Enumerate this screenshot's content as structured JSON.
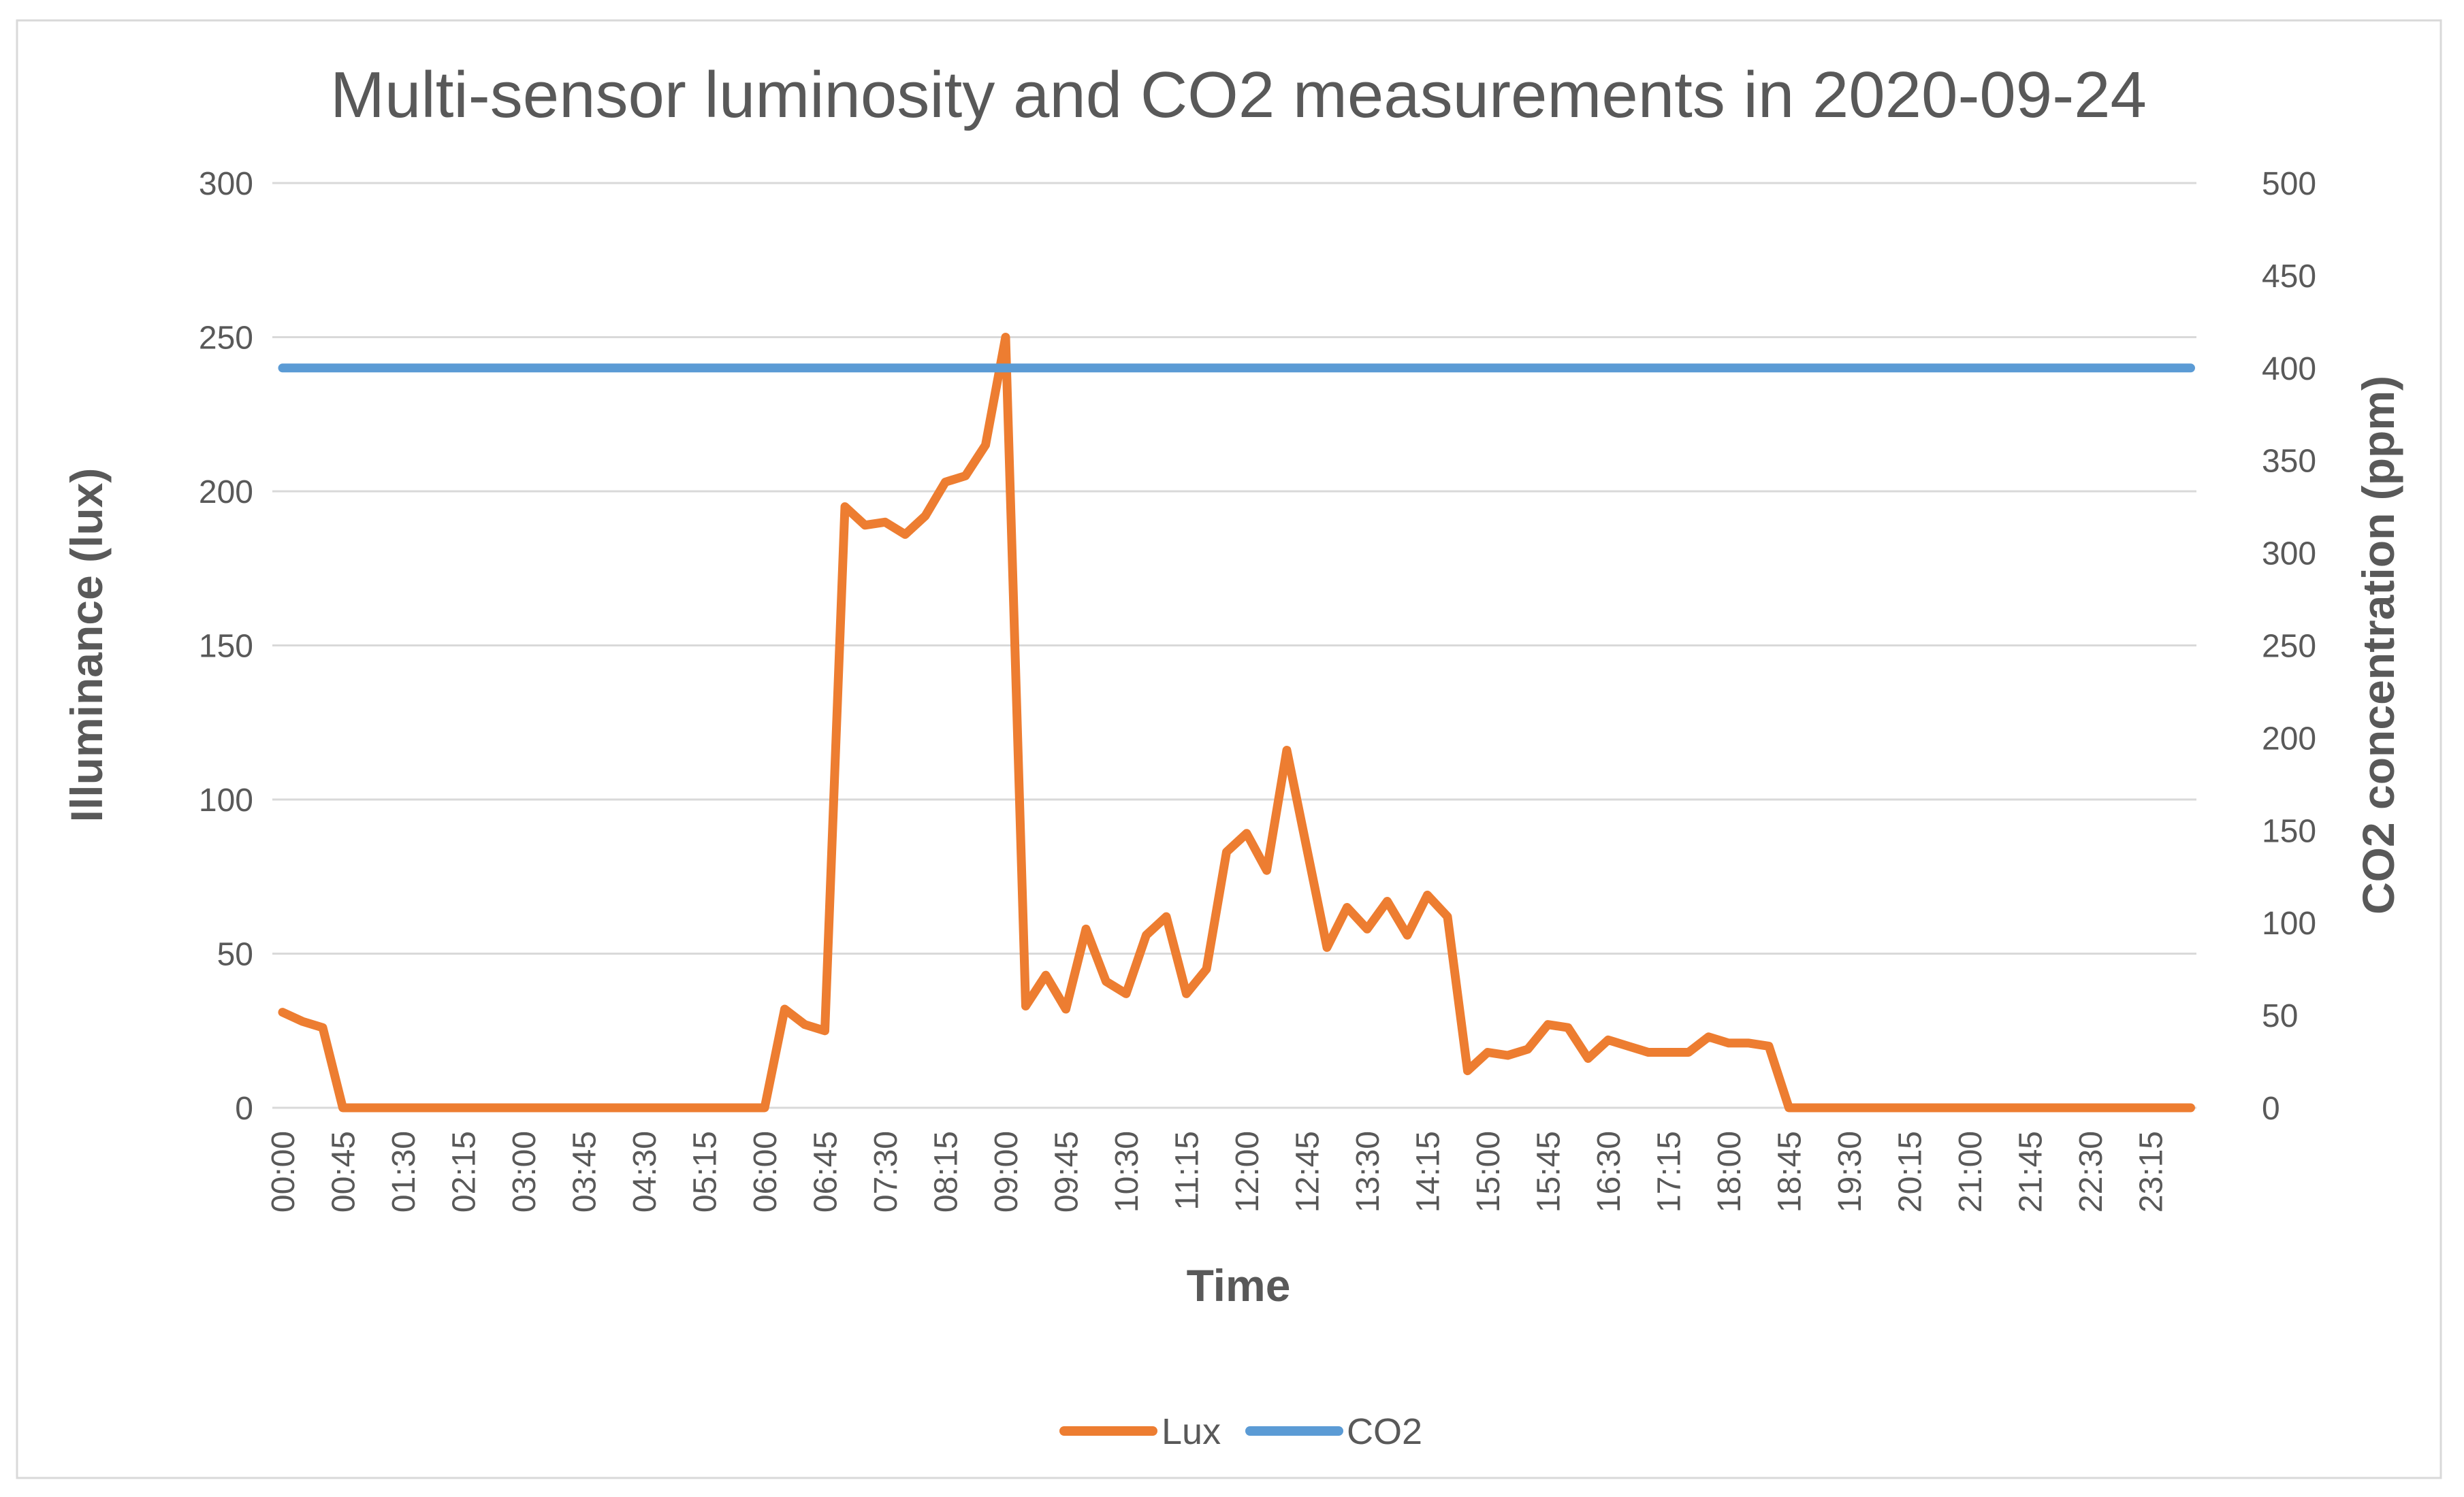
{
  "chart_data": {
    "type": "line",
    "title": "Multi-sensor luminosity and CO2 measurements in 2020-09-24",
    "xlabel": "Time",
    "ylabel_left": "Illuminance (lux)",
    "ylabel_right": "CO2 concentration (ppm)",
    "grid": true,
    "legend_position": "bottom",
    "left_axis": {
      "min": 0,
      "max": 300,
      "step": 50
    },
    "right_axis": {
      "min": 0,
      "max": 500,
      "step": 50
    },
    "x_tick_every": 3,
    "x_categories": [
      "00:00",
      "00:15",
      "00:30",
      "00:45",
      "01:00",
      "01:15",
      "01:30",
      "01:45",
      "02:00",
      "02:15",
      "02:30",
      "02:45",
      "03:00",
      "03:15",
      "03:30",
      "03:45",
      "04:00",
      "04:15",
      "04:30",
      "04:45",
      "05:00",
      "05:15",
      "05:30",
      "05:45",
      "06:00",
      "06:15",
      "06:30",
      "06:45",
      "07:00",
      "07:15",
      "07:30",
      "07:45",
      "08:00",
      "08:15",
      "08:30",
      "08:45",
      "09:00",
      "09:15",
      "09:30",
      "09:45",
      "10:00",
      "10:15",
      "10:30",
      "10:45",
      "11:00",
      "11:15",
      "11:30",
      "11:45",
      "12:00",
      "12:15",
      "12:30",
      "12:45",
      "13:00",
      "13:15",
      "13:30",
      "13:45",
      "14:00",
      "14:15",
      "14:30",
      "14:45",
      "15:00",
      "15:15",
      "15:30",
      "15:45",
      "16:00",
      "16:15",
      "16:30",
      "16:45",
      "17:00",
      "17:15",
      "17:30",
      "17:45",
      "18:00",
      "18:15",
      "18:30",
      "18:45",
      "19:00",
      "19:15",
      "19:30",
      "19:45",
      "20:00",
      "20:15",
      "20:30",
      "20:45",
      "21:00",
      "21:15",
      "21:30",
      "21:45",
      "22:00",
      "22:15",
      "22:30",
      "22:45",
      "23:00",
      "23:15",
      "23:30",
      "23:45"
    ],
    "series": [
      {
        "name": "Lux",
        "axis": "left",
        "color": "#ED7D31",
        "values": [
          31,
          28,
          26,
          0,
          0,
          0,
          0,
          0,
          0,
          0,
          0,
          0,
          0,
          0,
          0,
          0,
          0,
          0,
          0,
          0,
          0,
          0,
          0,
          0,
          0,
          32,
          27,
          25,
          195,
          189,
          190,
          186,
          192,
          203,
          205,
          215,
          250,
          33,
          43,
          32,
          58,
          41,
          37,
          56,
          62,
          37,
          45,
          83,
          89,
          77,
          116,
          84,
          52,
          65,
          58,
          67,
          56,
          69,
          62,
          12,
          18,
          17,
          19,
          27,
          26,
          16,
          22,
          20,
          18,
          18,
          18,
          23,
          21,
          21,
          20,
          0,
          0,
          0,
          0,
          0,
          0,
          0,
          0,
          0,
          0,
          0,
          0,
          0,
          0,
          0,
          0,
          0,
          0,
          0,
          0,
          0
        ]
      },
      {
        "name": "CO2",
        "axis": "right",
        "color": "#5B9BD5",
        "constant_value": 400
      }
    ],
    "colors": {
      "text": "#595959",
      "grid": "#D9D9D9",
      "border": "#D9D9D9",
      "background": "#FFFFFF"
    }
  },
  "legend": {
    "items": [
      {
        "label": "Lux",
        "color": "#ED7D31"
      },
      {
        "label": "CO2",
        "color": "#5B9BD5"
      }
    ]
  }
}
